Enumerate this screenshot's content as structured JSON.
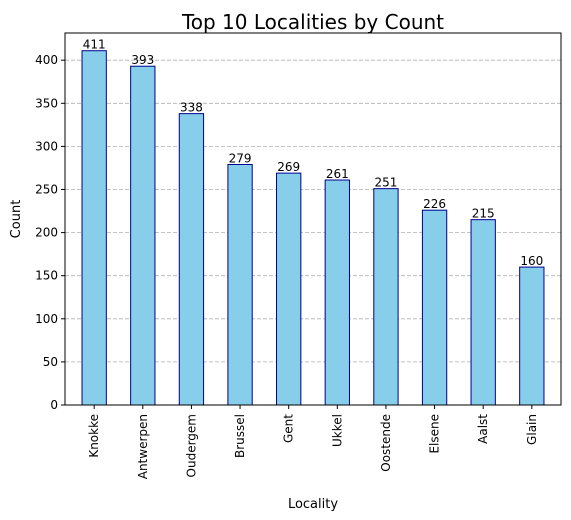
{
  "chart_data": {
    "type": "bar",
    "title": "Top 10 Localities by Count",
    "xlabel": "Locality",
    "ylabel": "Count",
    "categories": [
      "Knokke",
      "Antwerpen",
      "Oudergem",
      "Brussel",
      "Gent",
      "Ukkel",
      "Oostende",
      "Elsene",
      "Aalst",
      "Glain"
    ],
    "values": [
      411,
      393,
      338,
      279,
      269,
      261,
      251,
      226,
      215,
      160
    ],
    "ylim": [
      0,
      431.55
    ],
    "yticks": [
      0,
      50,
      100,
      150,
      200,
      250,
      300,
      350,
      400
    ],
    "grid": "y-dashed",
    "colors": {
      "bar_fill": "#87CEEB",
      "bar_edge": "#00008B",
      "grid": "#b0b0b0"
    }
  }
}
